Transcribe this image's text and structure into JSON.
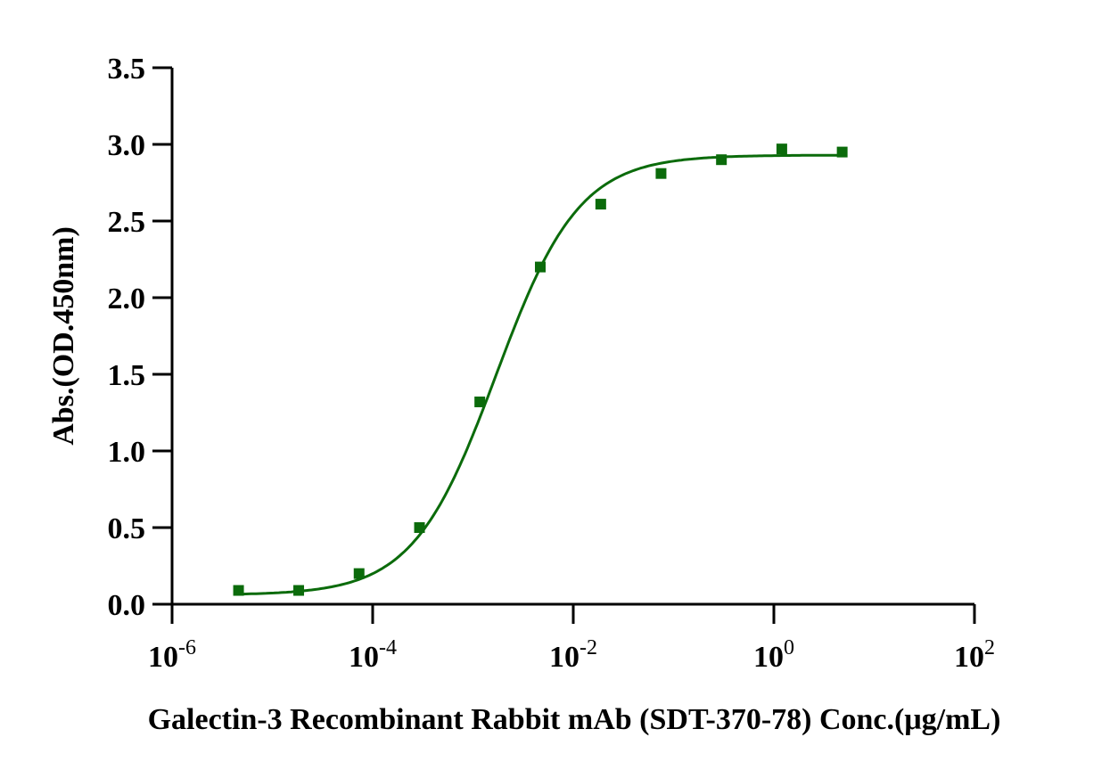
{
  "chart_data": {
    "type": "scatter",
    "title": "",
    "xlabel": "Galectin-3 Recombinant Rabbit mAb (SDT-370-78) Conc.(μg/mL)",
    "ylabel": "Abs.(OD.450nm)",
    "xscale": "log",
    "xlim": [
      1e-06,
      100
    ],
    "ylim": [
      0,
      3.5
    ],
    "x_ticks": [
      {
        "base": "10",
        "exp": "-6"
      },
      {
        "base": "10",
        "exp": "-4"
      },
      {
        "base": "10",
        "exp": "-2"
      },
      {
        "base": "10",
        "exp": "0"
      },
      {
        "base": "10",
        "exp": "2"
      }
    ],
    "y_ticks": [
      "0.0",
      "0.5",
      "1.0",
      "1.5",
      "2.0",
      "2.5",
      "3.0",
      "3.5"
    ],
    "grid": false,
    "series": [
      {
        "color": "#0b6b0b",
        "marker": "square",
        "x": [
          4.6e-06,
          1.83e-05,
          7.32e-05,
          0.000293,
          0.00117,
          0.00469,
          0.0188,
          0.075,
          0.3,
          1.2,
          4.8
        ],
        "y": [
          0.09,
          0.09,
          0.2,
          0.5,
          1.32,
          2.2,
          2.61,
          2.81,
          2.9,
          2.97,
          2.95
        ]
      }
    ],
    "fit": {
      "type": "4PL",
      "color": "#0b6b0b",
      "bottom": 0.06,
      "top": 2.93,
      "ec50": 0.0017,
      "hill": 1.05
    }
  }
}
